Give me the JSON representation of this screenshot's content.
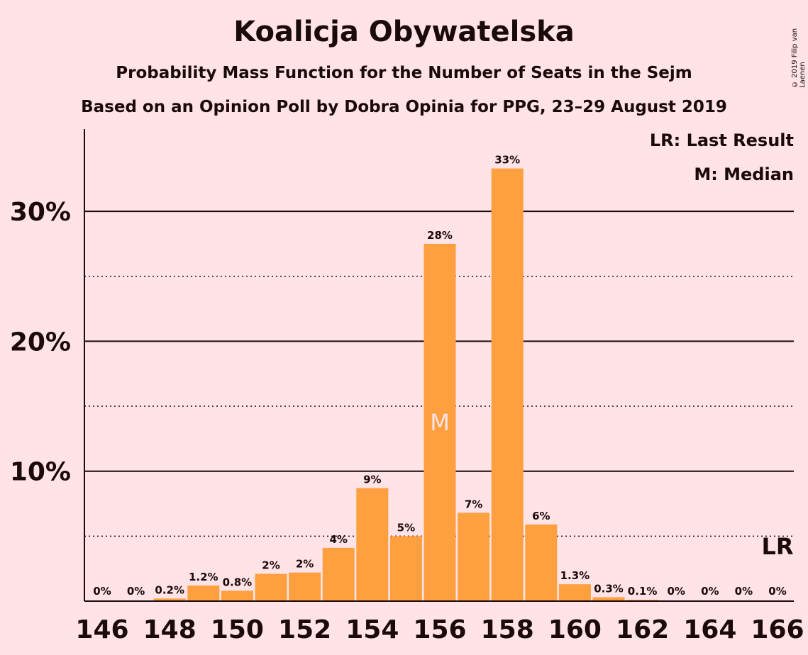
{
  "header": {
    "title": "Koalicja Obywatelska",
    "subtitle1": "Probability Mass Function for the Number of Seats in the Sejm",
    "subtitle2": "Based on an Opinion Poll by Dobra Opinia for PPG, 23–29 August 2019",
    "copyright": "© 2019 Filip van Laenen"
  },
  "legend": {
    "last_result": "LR: Last Result",
    "median": "M: Median"
  },
  "colors": {
    "bar": "#FFA040",
    "background": "#FFE3E6",
    "text": "#1a0a0a"
  },
  "chart_data": {
    "type": "bar",
    "x": [
      146,
      147,
      148,
      149,
      150,
      151,
      152,
      153,
      154,
      155,
      156,
      157,
      158,
      159,
      160,
      161,
      162,
      163,
      164,
      165,
      166
    ],
    "values": [
      0,
      0,
      0.2,
      1.2,
      0.8,
      2.1,
      2.2,
      4.1,
      8.7,
      5.0,
      27.5,
      6.8,
      33.3,
      5.9,
      1.3,
      0.3,
      0.1,
      0,
      0,
      0,
      0
    ],
    "labels": [
      "0%",
      "0%",
      "0.2%",
      "1.2%",
      "0.8%",
      "2%",
      "2%",
      "4%",
      "9%",
      "5%",
      "28%",
      "7%",
      "33%",
      "6%",
      "1.3%",
      "0.3%",
      "0.1%",
      "0%",
      "0%",
      "0%",
      "0%"
    ],
    "xticks": [
      "146",
      "148",
      "150",
      "152",
      "154",
      "156",
      "158",
      "160",
      "162",
      "164",
      "166"
    ],
    "yticks": [
      {
        "value": 10,
        "label": "10%"
      },
      {
        "value": 20,
        "label": "20%"
      },
      {
        "value": 30,
        "label": "30%"
      }
    ],
    "minor_gridlines": [
      5,
      15,
      25
    ],
    "ylim": [
      0,
      36
    ],
    "median_seat": 156,
    "median_marker": "M",
    "last_result_seat": 166,
    "last_result_marker": "LR",
    "legend_position": "top-right"
  }
}
